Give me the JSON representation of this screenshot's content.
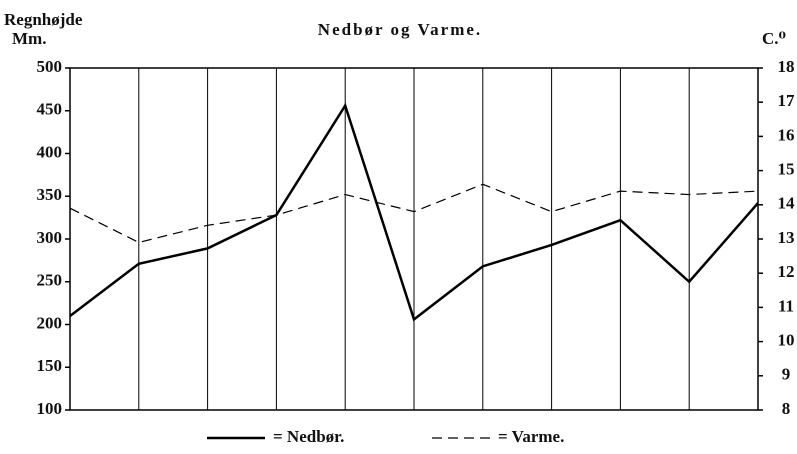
{
  "chart_data": {
    "type": "line",
    "title": "Nedbør og Varme.",
    "ylabel": "Regnhøjde",
    "yunit": "Mm.",
    "y2label": "C.⁰",
    "categories": [
      null,
      null,
      null,
      null,
      null,
      null,
      null,
      null,
      null,
      null,
      null
    ],
    "series": [
      {
        "name": "= Nedbør.",
        "color": "#000000",
        "style": "solid",
        "values": [
          210,
          271,
          289,
          328,
          456,
          206,
          268,
          293,
          322,
          250,
          342
        ]
      },
      {
        "name": "= Varme.",
        "color": "#000000",
        "style": "dashed",
        "axis": "y2",
        "values": [
          13.9,
          12.9,
          13.4,
          13.7,
          14.3,
          13.8,
          14.6,
          13.8,
          14.4,
          14.3,
          14.4
        ]
      }
    ],
    "ylim": [
      100,
      500
    ],
    "yticks": [
      100,
      150,
      200,
      250,
      300,
      350,
      400,
      450,
      500
    ],
    "y2lim": [
      8,
      18
    ],
    "y2ticks": [
      8,
      9,
      10,
      11,
      12,
      13,
      14,
      15,
      16,
      17,
      18
    ],
    "grid": true,
    "legend": "bottom"
  }
}
